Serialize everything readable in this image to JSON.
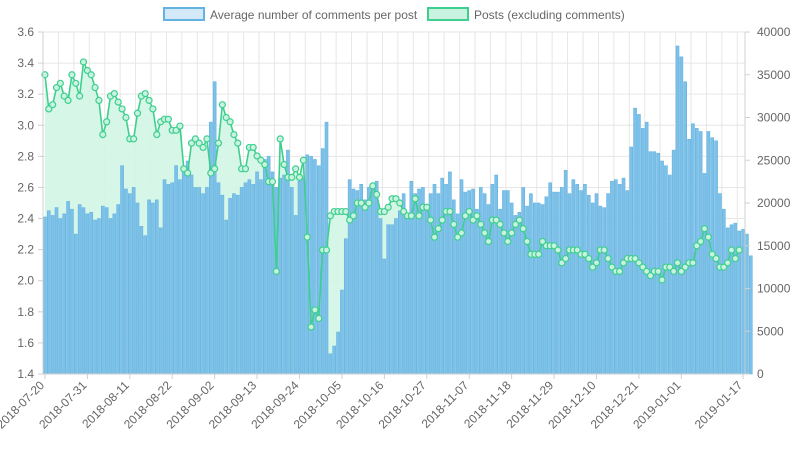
{
  "chart_data": {
    "type": "bar",
    "legend": {
      "position": "top",
      "items": [
        {
          "label": "Average number of comments per post",
          "fill": "#d4e9f8",
          "stroke": "#63b3e2"
        },
        {
          "label": "Posts (excluding comments)",
          "fill": "#c9f2e1",
          "stroke": "#3ecf8e"
        }
      ]
    },
    "grid": true,
    "y_left": {
      "min": 1.4,
      "max": 3.6,
      "ticks": [
        "1.4",
        "1.6",
        "1.8",
        "2.0",
        "2.2",
        "2.4",
        "2.6",
        "2.8",
        "3.0",
        "3.2",
        "3.4",
        "3.6"
      ]
    },
    "y_right": {
      "min": 0,
      "max": 40000,
      "ticks": [
        "0",
        "5000",
        "10000",
        "15000",
        "20000",
        "25000",
        "30000",
        "35000",
        "40000"
      ]
    },
    "x_labels": [
      "2018-07-20",
      "2018-07-31",
      "2018-08-11",
      "2018-08-22",
      "2018-09-02",
      "2018-09-13",
      "2018-09-24",
      "2018-10-05",
      "2018-10-16",
      "2018-10-27",
      "2018-11-07",
      "2018-11-18",
      "2018-11-29",
      "2018-12-10",
      "2018-12-21",
      "2019-01-01",
      "2019-01-17"
    ],
    "x_label_day_index": [
      0,
      11,
      22,
      33,
      44,
      55,
      66,
      77,
      88,
      99,
      110,
      121,
      132,
      143,
      154,
      165,
      181
    ],
    "day_count": 182,
    "series": [
      {
        "name": "Average number of comments per post",
        "type": "bar",
        "axis": "left",
        "color": "#63b3e2",
        "values": [
          2.41,
          2.45,
          2.42,
          2.47,
          2.4,
          2.43,
          2.51,
          2.46,
          2.3,
          2.49,
          2.47,
          2.43,
          2.44,
          2.39,
          2.4,
          2.48,
          2.47,
          2.4,
          2.43,
          2.49,
          2.74,
          2.59,
          2.56,
          2.6,
          2.5,
          2.35,
          2.29,
          2.52,
          2.5,
          2.52,
          2.34,
          2.65,
          2.62,
          2.63,
          2.74,
          2.65,
          2.7,
          2.77,
          2.68,
          2.6,
          2.6,
          2.56,
          2.6,
          3.02,
          3.28,
          2.63,
          2.55,
          2.39,
          2.53,
          2.56,
          2.55,
          2.6,
          2.63,
          2.65,
          2.62,
          2.7,
          2.65,
          2.78,
          2.8,
          2.7,
          2.6,
          2.66,
          2.68,
          2.84,
          2.6,
          2.42,
          2.64,
          2.66,
          2.81,
          2.8,
          2.78,
          2.74,
          2.85,
          3.02,
          1.53,
          1.58,
          1.67,
          1.94,
          2.27,
          2.65,
          2.59,
          2.58,
          2.62,
          2.52,
          2.6,
          2.6,
          2.64,
          2.4,
          2.14,
          2.36,
          2.36,
          2.4,
          2.45,
          2.56,
          2.43,
          2.64,
          2.56,
          2.59,
          2.6,
          2.46,
          2.56,
          2.62,
          2.56,
          2.66,
          2.62,
          2.7,
          2.52,
          2.43,
          2.65,
          2.57,
          2.58,
          2.59,
          2.46,
          2.6,
          2.56,
          2.49,
          2.62,
          2.68,
          2.46,
          2.58,
          2.58,
          2.5,
          2.42,
          2.44,
          2.6,
          2.48,
          2.56,
          2.5,
          2.5,
          2.49,
          2.54,
          2.63,
          2.57,
          2.57,
          2.6,
          2.71,
          2.56,
          2.65,
          2.62,
          2.58,
          2.62,
          2.55,
          2.5,
          2.56,
          2.48,
          2.47,
          2.56,
          2.64,
          2.65,
          2.62,
          2.66,
          2.58,
          2.86,
          3.11,
          3.07,
          2.98,
          3.02,
          2.83,
          2.83,
          2.82,
          2.77,
          2.74,
          2.68,
          2.84,
          3.51,
          3.44,
          3.28,
          2.91,
          3.01,
          2.98,
          2.96,
          2.69,
          2.96,
          2.92,
          2.9,
          2.56,
          2.46,
          2.34,
          2.36,
          2.37,
          2.32,
          2.33,
          2.3,
          2.16
        ]
      },
      {
        "name": "Posts (excluding comments)",
        "type": "area",
        "axis": "right",
        "color": "#3ecf8e",
        "fill": "#d2f5e5",
        "values": [
          35000,
          31000,
          31500,
          33500,
          34000,
          32500,
          32000,
          35000,
          34000,
          32500,
          36500,
          35500,
          35000,
          33500,
          32000,
          28000,
          29500,
          32500,
          32800,
          31800,
          31000,
          30000,
          27500,
          27500,
          30500,
          32500,
          32800,
          32000,
          31000,
          28000,
          29500,
          29800,
          29800,
          28500,
          28500,
          29000,
          24000,
          23500,
          27000,
          27500,
          27000,
          26500,
          27500,
          23500,
          24000,
          27000,
          31500,
          30000,
          29500,
          28000,
          27000,
          24000,
          24000,
          26500,
          26500,
          25500,
          25000,
          24500,
          22500,
          22500,
          12000,
          27500,
          24500,
          23000,
          23000,
          24000,
          23000,
          25000,
          16000,
          5500,
          7500,
          6500,
          14500,
          14500,
          18500,
          19000,
          19000,
          19000,
          19000,
          18000,
          18500,
          20000,
          20000,
          19500,
          20000,
          22000,
          21000,
          19000,
          19000,
          19500,
          20500,
          20500,
          20000,
          19000,
          18500,
          18500,
          20500,
          18500,
          19500,
          19500,
          18000,
          16000,
          17000,
          18000,
          19000,
          19000,
          17500,
          16000,
          16500,
          18500,
          19000,
          18000,
          18500,
          17500,
          16500,
          15500,
          18000,
          18000,
          17500,
          16500,
          15500,
          16500,
          17500,
          18000,
          17000,
          15500,
          14000,
          14000,
          14000,
          15500,
          15000,
          15000,
          15000,
          14500,
          13000,
          13500,
          14500,
          14500,
          14500,
          14000,
          14000,
          13500,
          12500,
          13000,
          14500,
          14500,
          13500,
          12500,
          12000,
          12000,
          13000,
          13500,
          13500,
          13500,
          13000,
          12500,
          12000,
          11500,
          12000,
          12000,
          11000,
          12500,
          12500,
          12000,
          13000,
          12000,
          12500,
          13000,
          13000,
          15000,
          15500,
          17000,
          16000,
          14000,
          13500,
          12500,
          12500,
          13000,
          14500,
          13500,
          14500
        ]
      }
    ]
  }
}
